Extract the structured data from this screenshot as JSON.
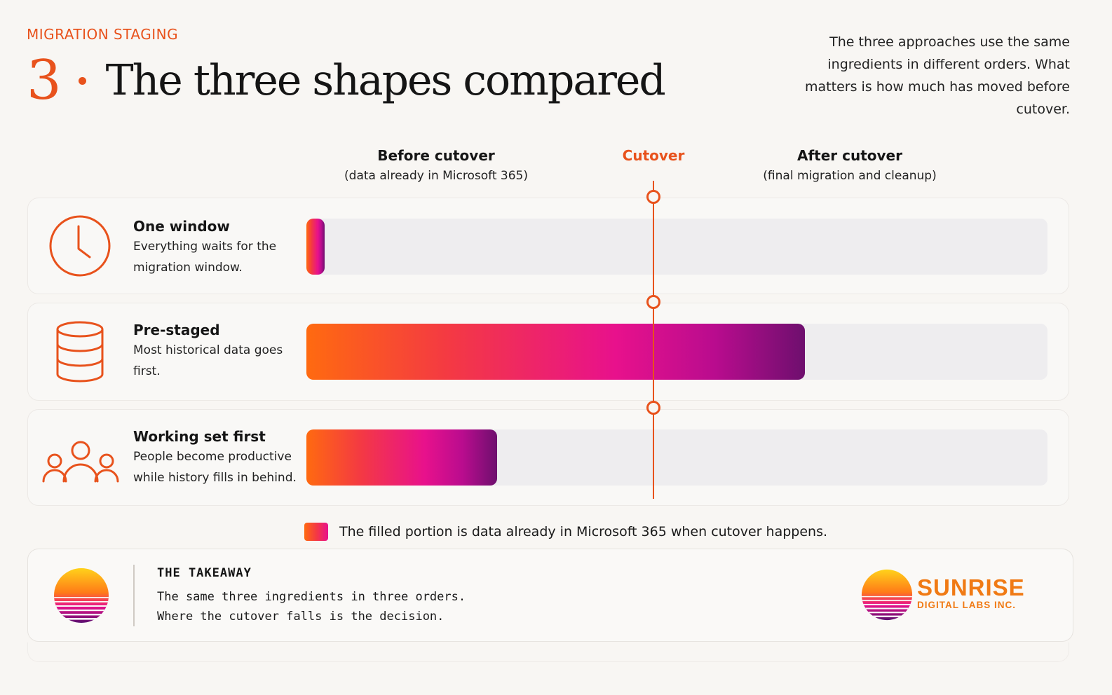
{
  "eyebrow": "MIGRATION STAGING",
  "title": {
    "number": "3",
    "text": "The three shapes compared"
  },
  "intro": "The three approaches use the same ingredients in different orders. What matters is how much has moved before cutover.",
  "columns": {
    "before": {
      "heading": "Before cutover",
      "sub": "(data already in Microsoft 365)"
    },
    "cutover": {
      "heading": "Cutover"
    },
    "after": {
      "heading": "After cutover",
      "sub": "(final migration and cleanup)"
    }
  },
  "rows": [
    {
      "name": "One window",
      "desc": "Everything waits for the migration window.",
      "icon": "clock-icon",
      "filled_fraction": 0.025
    },
    {
      "name": "Pre-staged",
      "desc": "Most historical data goes first.",
      "icon": "database-icon",
      "filled_fraction": 0.673
    },
    {
      "name": "Working set first",
      "desc": "People become productive while history fills in behind.",
      "icon": "people-group-icon",
      "filled_fraction": 0.257
    }
  ],
  "cutover_fraction": 0.467,
  "legend": "The filled portion is data already in Microsoft 365 when cutover happens.",
  "takeaway": {
    "heading": "THE TAKEAWAY",
    "line1": "The same three ingredients in three orders.",
    "line2": "Where the cutover falls is the decision."
  },
  "brand": {
    "name": "SUNRISE",
    "sub": "DIGITAL LABS INC."
  },
  "colors": {
    "accent": "#e8521c",
    "track": "#eeedef",
    "gradient_start": "#ff6a10",
    "gradient_mid": "#e8118c",
    "gradient_end": "#6e0f6e"
  }
}
